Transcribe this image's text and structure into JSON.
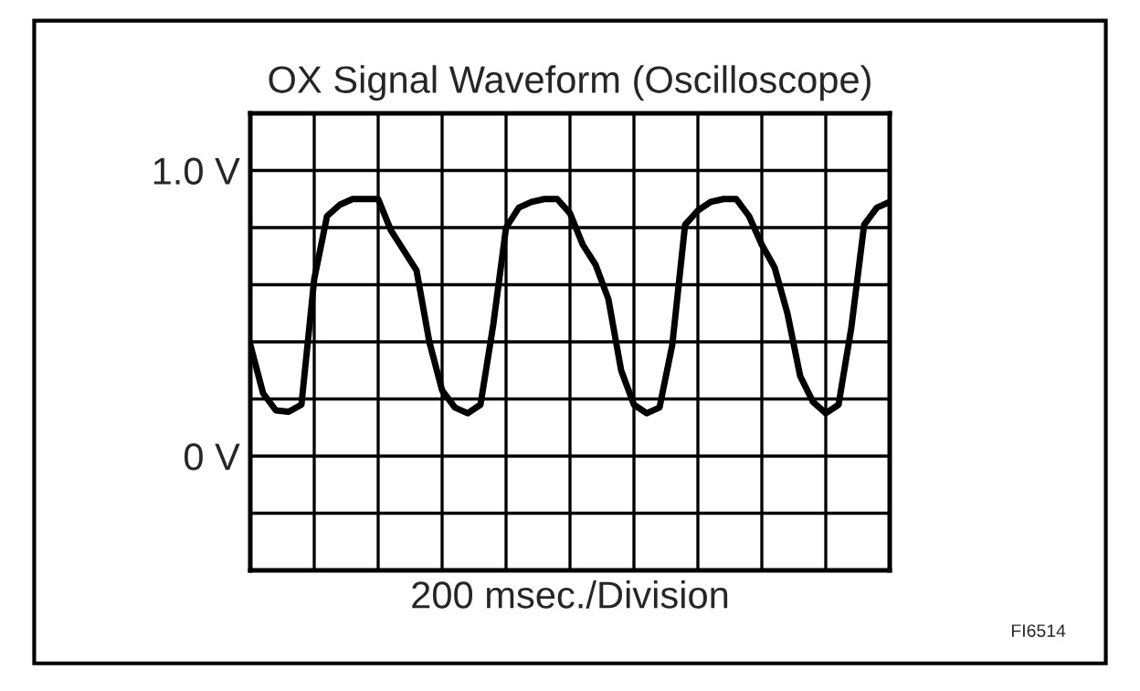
{
  "chart_data": {
    "type": "line",
    "title": "OX Signal Waveform (Oscilloscope)",
    "xlabel": "200 msec./Division",
    "annotations": [
      "FI6514"
    ],
    "categories": [
      null,
      null,
      null,
      null,
      null,
      null,
      null,
      null,
      null,
      null,
      null,
      null,
      null,
      null,
      null,
      null,
      null,
      null,
      null,
      null,
      null,
      null,
      null,
      null,
      null,
      null,
      null,
      null,
      null,
      null,
      null,
      null,
      null,
      null,
      null,
      null,
      null,
      null,
      null,
      null,
      null,
      null,
      null,
      null,
      null,
      null,
      null,
      null,
      null,
      null,
      null
    ],
    "series": [
      {
        "color": "#000000",
        "values": [
          0.39,
          0.22,
          0.16,
          0.155,
          0.18,
          0.62,
          0.84,
          0.88,
          0.9,
          0.9,
          0.9,
          0.79,
          0.72,
          0.65,
          0.4,
          0.23,
          0.17,
          0.15,
          0.18,
          0.46,
          0.8,
          0.87,
          0.89,
          0.9,
          0.9,
          0.85,
          0.74,
          0.67,
          0.55,
          0.3,
          0.18,
          0.15,
          0.17,
          0.39,
          0.81,
          0.86,
          0.89,
          0.9,
          0.9,
          0.84,
          0.74,
          0.66,
          0.5,
          0.28,
          0.19,
          0.15,
          0.18,
          0.45,
          0.81,
          0.87,
          0.89
        ]
      }
    ],
    "ylim": [
      -0.4,
      1.2
    ],
    "yticks": [
      {
        "value": -0.4,
        "label": null
      },
      {
        "value": -0.2,
        "label": null
      },
      {
        "value": 0,
        "label": "0 V"
      },
      {
        "value": 0.2,
        "label": null
      },
      {
        "value": 0.4,
        "label": null
      },
      {
        "value": 0.6,
        "label": null
      },
      {
        "value": 0.8,
        "label": null
      },
      {
        "value": 1.0,
        "label": "1.0 V"
      },
      {
        "value": 1.2,
        "label": null
      }
    ],
    "grid": true,
    "line_style": "solid",
    "marker": "none"
  }
}
